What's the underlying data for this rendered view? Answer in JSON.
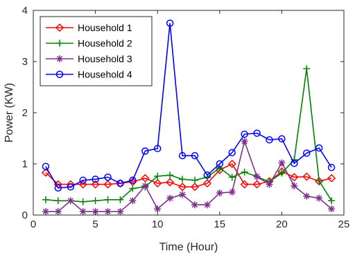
{
  "chart_data": {
    "type": "line",
    "xlabel": "Time (Hour)",
    "ylabel": "Power (KW)",
    "xlim": [
      0,
      25
    ],
    "ylim": [
      0,
      4
    ],
    "xticks": [
      0,
      5,
      10,
      15,
      20,
      25
    ],
    "yticks": [
      0,
      1,
      2,
      3,
      4
    ],
    "grid": false,
    "legend_position": "top-left",
    "x": [
      1,
      2,
      3,
      4,
      5,
      6,
      7,
      8,
      9,
      10,
      11,
      12,
      13,
      14,
      15,
      16,
      17,
      18,
      19,
      20,
      21,
      22,
      23,
      24
    ],
    "series": [
      {
        "name": "Household 1",
        "color": "#ff0000",
        "marker": "diamond",
        "values": [
          0.83,
          0.6,
          0.6,
          0.6,
          0.6,
          0.6,
          0.62,
          0.65,
          0.72,
          0.62,
          0.64,
          0.55,
          0.55,
          0.62,
          0.88,
          1.0,
          0.6,
          0.6,
          0.66,
          0.85,
          0.74,
          0.75,
          0.66,
          0.72
        ]
      },
      {
        "name": "Household 2",
        "color": "#008000",
        "marker": "plus",
        "values": [
          0.3,
          0.28,
          0.28,
          0.26,
          0.28,
          0.3,
          0.3,
          0.52,
          0.55,
          0.76,
          0.78,
          0.7,
          0.68,
          0.74,
          0.92,
          0.74,
          0.84,
          0.75,
          0.65,
          0.82,
          1.08,
          2.86,
          0.67,
          0.28
        ]
      },
      {
        "name": "Household 3",
        "color": "#7e2f8e",
        "marker": "asterisk",
        "values": [
          0.07,
          0.07,
          0.28,
          0.07,
          0.07,
          0.07,
          0.07,
          0.28,
          0.57,
          0.12,
          0.33,
          0.4,
          0.2,
          0.2,
          0.43,
          0.45,
          1.44,
          0.75,
          0.6,
          1.02,
          0.57,
          0.37,
          0.33,
          0.12
        ]
      },
      {
        "name": "Household 4",
        "color": "#0000ff",
        "marker": "circle",
        "values": [
          0.95,
          0.53,
          0.55,
          0.68,
          0.7,
          0.74,
          0.62,
          0.68,
          1.25,
          1.3,
          3.75,
          1.16,
          1.16,
          0.78,
          1.0,
          1.22,
          1.58,
          1.6,
          1.47,
          1.49,
          1.01,
          1.21,
          1.31,
          0.93
        ]
      }
    ]
  }
}
